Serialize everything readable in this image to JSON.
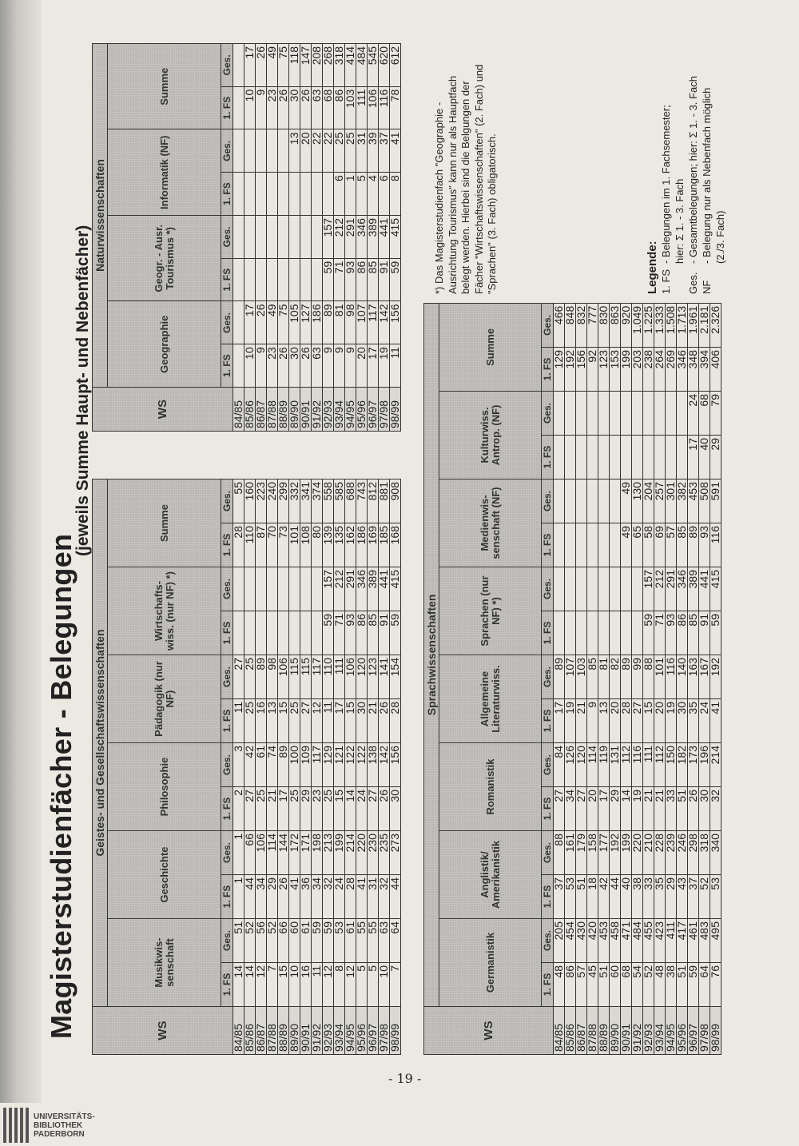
{
  "title": "Magisterstudienfächer - Belegungen",
  "subtitle": "(jeweils Summe Haupt- und Nebenfächer)",
  "page_number": "- 19 -",
  "library_logo": [
    "UNIVERSITÄTS-",
    "BIBLIOTHEK",
    "PADERBORN"
  ],
  "tables": [
    {
      "group_label": "Geistes- und Gesellschaftswissenschaften",
      "ws_label": "WS",
      "sub_labels": [
        "1. FS",
        "Ges."
      ],
      "columns": [
        "Musikwis-senschaft",
        "Geschichte",
        "Philosophie",
        "Pädagogik (nur NF)",
        "Wirtschafts-wiss. (nur NF) *)",
        "Summe"
      ],
      "rows": [
        {
          "ws": "84/85",
          "values": [
            "14",
            "51",
            "1",
            "1",
            "2",
            "3",
            "11",
            "27",
            "",
            "",
            "28",
            "55"
          ]
        },
        {
          "ws": "85/86",
          "values": [
            "14",
            "52",
            "44",
            "66",
            "27",
            "42",
            "25",
            "25",
            "",
            "",
            "110",
            "160"
          ]
        },
        {
          "ws": "86/87",
          "values": [
            "12",
            "56",
            "34",
            "106",
            "25",
            "61",
            "16",
            "89",
            "",
            "",
            "87",
            "223"
          ]
        },
        {
          "ws": "87/88",
          "values": [
            "7",
            "52",
            "29",
            "114",
            "21",
            "74",
            "13",
            "98",
            "",
            "",
            "70",
            "240"
          ]
        },
        {
          "ws": "88/89",
          "values": [
            "15",
            "66",
            "26",
            "144",
            "17",
            "89",
            "15",
            "106",
            "",
            "",
            "73",
            "299"
          ]
        },
        {
          "ws": "89/90",
          "values": [
            "10",
            "60",
            "41",
            "172",
            "25",
            "100",
            "25",
            "115",
            "",
            "",
            "101",
            "332"
          ]
        },
        {
          "ws": "90/91",
          "values": [
            "16",
            "61",
            "36",
            "171",
            "29",
            "109",
            "27",
            "115",
            "",
            "",
            "108",
            "341"
          ]
        },
        {
          "ws": "91/92",
          "values": [
            "11",
            "59",
            "34",
            "198",
            "23",
            "117",
            "12",
            "117",
            "",
            "",
            "80",
            "374"
          ]
        },
        {
          "ws": "92/93",
          "values": [
            "12",
            "59",
            "32",
            "213",
            "25",
            "129",
            "11",
            "110",
            "59",
            "157",
            "139",
            "558"
          ]
        },
        {
          "ws": "93/94",
          "values": [
            "8",
            "53",
            "24",
            "199",
            "15",
            "121",
            "17",
            "111",
            "71",
            "212",
            "135",
            "585"
          ]
        },
        {
          "ws": "94/95",
          "values": [
            "12",
            "61",
            "28",
            "214",
            "14",
            "122",
            "15",
            "106",
            "93",
            "291",
            "162",
            "688"
          ]
        },
        {
          "ws": "95/96",
          "values": [
            "5",
            "55",
            "41",
            "220",
            "24",
            "122",
            "30",
            "120",
            "86",
            "346",
            "186",
            "743"
          ]
        },
        {
          "ws": "96/97",
          "values": [
            "5",
            "55",
            "31",
            "230",
            "27",
            "138",
            "21",
            "123",
            "85",
            "389",
            "169",
            "812"
          ]
        },
        {
          "ws": "97/98",
          "values": [
            "10",
            "63",
            "32",
            "235",
            "26",
            "142",
            "26",
            "141",
            "91",
            "441",
            "185",
            "881"
          ]
        },
        {
          "ws": "98/99",
          "values": [
            "7",
            "64",
            "44",
            "273",
            "30",
            "156",
            "28",
            "154",
            "59",
            "415",
            "168",
            "908"
          ]
        }
      ]
    },
    {
      "group_label": "Naturwissenschaften",
      "ws_label": "WS",
      "sub_labels": [
        "1. FS",
        "Ges."
      ],
      "columns": [
        "Geographie",
        "Geogr. - Ausr. Tourismus *)",
        "Informatik (NF)",
        "Summe"
      ],
      "rows": [
        {
          "ws": "84/85",
          "values": [
            "",
            "",
            "",
            "",
            "",
            "",
            "",
            ""
          ]
        },
        {
          "ws": "85/86",
          "values": [
            "10",
            "17",
            "",
            "",
            "",
            "",
            "10",
            "17"
          ]
        },
        {
          "ws": "86/87",
          "values": [
            "9",
            "26",
            "",
            "",
            "",
            "",
            "9",
            "26"
          ]
        },
        {
          "ws": "87/88",
          "values": [
            "23",
            "49",
            "",
            "",
            "",
            "",
            "23",
            "49"
          ]
        },
        {
          "ws": "88/89",
          "values": [
            "26",
            "75",
            "",
            "",
            "",
            "",
            "26",
            "75"
          ]
        },
        {
          "ws": "89/90",
          "values": [
            "30",
            "105",
            "",
            "",
            "",
            "13",
            "30",
            "118"
          ]
        },
        {
          "ws": "90/91",
          "values": [
            "26",
            "127",
            "",
            "",
            "",
            "20",
            "26",
            "147"
          ]
        },
        {
          "ws": "91/92",
          "values": [
            "63",
            "186",
            "",
            "",
            "",
            "22",
            "63",
            "208"
          ]
        },
        {
          "ws": "92/93",
          "values": [
            "9",
            "89",
            "59",
            "157",
            "",
            "22",
            "68",
            "268"
          ]
        },
        {
          "ws": "93/94",
          "values": [
            "9",
            "81",
            "71",
            "212",
            "6",
            "25",
            "86",
            "318"
          ]
        },
        {
          "ws": "94/95",
          "values": [
            "9",
            "98",
            "93",
            "291",
            "1",
            "25",
            "103",
            "414"
          ]
        },
        {
          "ws": "95/96",
          "values": [
            "20",
            "107",
            "86",
            "346",
            "5",
            "31",
            "111",
            "484"
          ]
        },
        {
          "ws": "96/97",
          "values": [
            "17",
            "117",
            "85",
            "389",
            "4",
            "39",
            "106",
            "545"
          ]
        },
        {
          "ws": "97/98",
          "values": [
            "19",
            "142",
            "91",
            "441",
            "6",
            "37",
            "116",
            "620"
          ]
        },
        {
          "ws": "98/99",
          "values": [
            "11",
            "156",
            "59",
            "415",
            "8",
            "41",
            "78",
            "612"
          ]
        }
      ]
    },
    {
      "group_label": "Sprachwissenschaften",
      "ws_label": "WS",
      "sub_labels": [
        "1. FS",
        "Ges."
      ],
      "columns": [
        "Germanistik",
        "Anglistik/ Amerikanistik",
        "Romanistik",
        "Allgemeine Literaturwiss.",
        "Sprachen (nur NF) *)",
        "Medienwis-senschaft (NF)",
        "Kulturwiss. Antrop. (NF)",
        "Summe"
      ],
      "rows": [
        {
          "ws": "84/85",
          "values": [
            "48",
            "205",
            "37",
            "88",
            "27",
            "84",
            "17",
            "89",
            "",
            "",
            "",
            "",
            "",
            "",
            "129",
            "466"
          ]
        },
        {
          "ws": "85/86",
          "values": [
            "86",
            "454",
            "53",
            "161",
            "34",
            "126",
            "19",
            "107",
            "",
            "",
            "",
            "",
            "",
            "",
            "192",
            "848"
          ]
        },
        {
          "ws": "86/87",
          "values": [
            "57",
            "430",
            "51",
            "179",
            "27",
            "120",
            "21",
            "103",
            "",
            "",
            "",
            "",
            "",
            "",
            "156",
            "832"
          ]
        },
        {
          "ws": "87/88",
          "values": [
            "45",
            "420",
            "18",
            "158",
            "20",
            "114",
            "9",
            "85",
            "",
            "",
            "",
            "",
            "",
            "",
            "92",
            "777"
          ]
        },
        {
          "ws": "88/89",
          "values": [
            "51",
            "453",
            "42",
            "177",
            "17",
            "119",
            "13",
            "81",
            "",
            "",
            "",
            "",
            "",
            "",
            "123",
            "830"
          ]
        },
        {
          "ws": "89/90",
          "values": [
            "60",
            "458",
            "44",
            "192",
            "29",
            "131",
            "20",
            "82",
            "",
            "",
            "",
            "",
            "",
            "",
            "153",
            "863"
          ]
        },
        {
          "ws": "90/91",
          "values": [
            "68",
            "471",
            "40",
            "199",
            "14",
            "112",
            "28",
            "89",
            "",
            "",
            "49",
            "49",
            "",
            "",
            "199",
            "920"
          ]
        },
        {
          "ws": "91/92",
          "values": [
            "54",
            "484",
            "38",
            "220",
            "19",
            "116",
            "27",
            "99",
            "",
            "",
            "65",
            "130",
            "",
            "",
            "203",
            "1.049"
          ]
        },
        {
          "ws": "92/93",
          "values": [
            "52",
            "455",
            "33",
            "210",
            "21",
            "111",
            "15",
            "88",
            "59",
            "157",
            "58",
            "204",
            "",
            "",
            "238",
            "1.225"
          ]
        },
        {
          "ws": "93/94",
          "values": [
            "48",
            "423",
            "35",
            "228",
            "21",
            "112",
            "20",
            "101",
            "71",
            "212",
            "69",
            "257",
            "",
            "",
            "264",
            "1.333"
          ]
        },
        {
          "ws": "94/95",
          "values": [
            "38",
            "411",
            "29",
            "239",
            "33",
            "150",
            "19",
            "116",
            "93",
            "291",
            "57",
            "301",
            "",
            "",
            "269",
            "1.508"
          ]
        },
        {
          "ws": "95/96",
          "values": [
            "51",
            "417",
            "43",
            "246",
            "51",
            "182",
            "30",
            "140",
            "86",
            "346",
            "85",
            "382",
            "",
            "",
            "346",
            "1.713"
          ]
        },
        {
          "ws": "96/97",
          "values": [
            "59",
            "461",
            "37",
            "298",
            "26",
            "173",
            "35",
            "163",
            "85",
            "389",
            "89",
            "453",
            "17",
            "24",
            "348",
            "1.961"
          ]
        },
        {
          "ws": "97/98",
          "values": [
            "64",
            "483",
            "52",
            "318",
            "30",
            "196",
            "24",
            "167",
            "91",
            "441",
            "93",
            "508",
            "40",
            "68",
            "394",
            "2.181"
          ]
        },
        {
          "ws": "98/99",
          "values": [
            "76",
            "495",
            "53",
            "340",
            "32",
            "214",
            "41",
            "192",
            "59",
            "415",
            "116",
            "591",
            "29",
            "79",
            "406",
            "2.326"
          ]
        }
      ]
    }
  ],
  "footnote": "*) Das Magisterstudienfach \"Geographie - Ausrichtung Tourismus\" kann nur als Hauptfach belegt werden. Hierbei sind die Belgungen der Fächer \"Wirtschaftswissenschaften\" (2. Fach) und \"Sprachen\" (3. Fach) obligatorisch.",
  "legend": {
    "title": "Legende:",
    "items": [
      {
        "abbr": "1. FS",
        "text": "- Belegungen im 1. Fachsemester;",
        "text2": "hier: Σ 1. - 3. Fach"
      },
      {
        "abbr": "Ges.",
        "text": "- Gesamtbelegungen; hier: Σ 1. - 3. Fach",
        "text2": ""
      },
      {
        "abbr": "NF",
        "text": "- Belegung nur als Nebenfach möglich",
        "text2": "(2./3. Fach)"
      }
    ]
  }
}
